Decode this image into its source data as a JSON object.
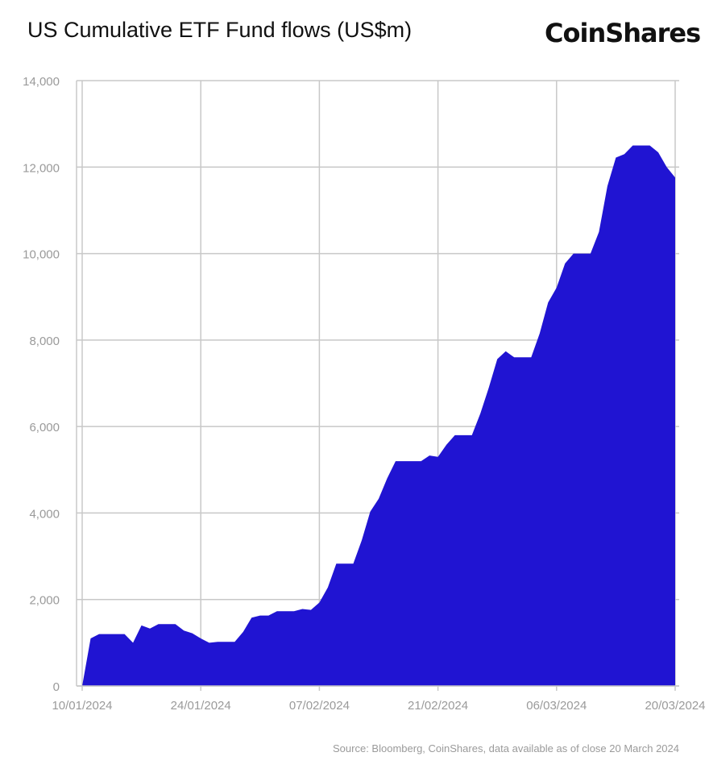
{
  "header": {
    "title": "US Cumulative ETF Fund flows (US$m)",
    "logo_text": "CoinShares"
  },
  "footer": {
    "source": "Source: Bloomberg, CoinShares, data available as of close 20 March 2024"
  },
  "colors": {
    "area_fill": "#2014d2",
    "grid": "#c8c8c8",
    "tick_text": "#9a9a9a"
  },
  "chart_data": {
    "type": "area",
    "title": "US Cumulative ETF Fund flows (US$m)",
    "xlabel": "",
    "ylabel": "",
    "ylim": [
      0,
      14000
    ],
    "y_ticks": [
      0,
      2000,
      4000,
      6000,
      8000,
      10000,
      12000,
      14000
    ],
    "y_tick_labels": [
      "0",
      "2,000",
      "4,000",
      "6,000",
      "8,000",
      "10,000",
      "12,000",
      "14,000"
    ],
    "x_tick_labels": [
      "10/01/2024",
      "24/01/2024",
      "07/02/2024",
      "21/02/2024",
      "06/03/2024",
      "20/03/2024"
    ],
    "xlim": [
      "2024-01-10",
      "2024-03-20"
    ],
    "grid": true,
    "legend": "none",
    "series": [
      {
        "x": [
          "2024-01-10",
          "2024-01-11",
          "2024-01-12",
          "2024-01-13",
          "2024-01-14",
          "2024-01-15",
          "2024-01-16",
          "2024-01-17",
          "2024-01-18",
          "2024-01-19",
          "2024-01-20",
          "2024-01-21",
          "2024-01-22",
          "2024-01-23",
          "2024-01-24",
          "2024-01-25",
          "2024-01-26",
          "2024-01-27",
          "2024-01-28",
          "2024-01-29",
          "2024-01-30",
          "2024-01-31",
          "2024-02-01",
          "2024-02-02",
          "2024-02-03",
          "2024-02-04",
          "2024-02-05",
          "2024-02-06",
          "2024-02-07",
          "2024-02-08",
          "2024-02-09",
          "2024-02-10",
          "2024-02-11",
          "2024-02-12",
          "2024-02-13",
          "2024-02-14",
          "2024-02-15",
          "2024-02-16",
          "2024-02-17",
          "2024-02-18",
          "2024-02-19",
          "2024-02-20",
          "2024-02-21",
          "2024-02-22",
          "2024-02-23",
          "2024-02-24",
          "2024-02-25",
          "2024-02-26",
          "2024-02-27",
          "2024-02-28",
          "2024-02-29",
          "2024-03-01",
          "2024-03-02",
          "2024-03-03",
          "2024-03-04",
          "2024-03-05",
          "2024-03-06",
          "2024-03-07",
          "2024-03-08",
          "2024-03-09",
          "2024-03-10",
          "2024-03-11",
          "2024-03-12",
          "2024-03-13",
          "2024-03-14",
          "2024-03-15",
          "2024-03-16",
          "2024-03-17",
          "2024-03-18",
          "2024-03-19",
          "2024-03-20"
        ],
        "values": [
          0,
          1100,
          1200,
          1200,
          1200,
          1200,
          1000,
          1400,
          1330,
          1430,
          1430,
          1430,
          1280,
          1220,
          1100,
          1000,
          1020,
          1020,
          1020,
          1250,
          1580,
          1630,
          1630,
          1730,
          1730,
          1730,
          1780,
          1760,
          1930,
          2280,
          2830,
          2830,
          2830,
          3370,
          4030,
          4330,
          4800,
          5200,
          5200,
          5200,
          5200,
          5330,
          5300,
          5580,
          5800,
          5800,
          5800,
          6300,
          6900,
          7560,
          7740,
          7600,
          7600,
          7600,
          8150,
          8870,
          9210,
          9770,
          10000,
          10000,
          10000,
          10500,
          11560,
          12220,
          12300,
          12500,
          12500,
          12500,
          12340,
          12000,
          11760
        ]
      }
    ]
  }
}
